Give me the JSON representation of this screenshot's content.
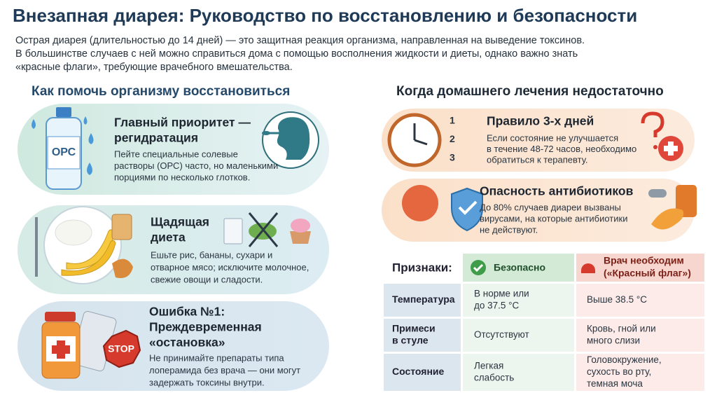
{
  "header": {
    "title": "Внезапная диарея: Руководство по восстановлению и безопасности",
    "intro": [
      "Острая диарея (длительностью до 14 дней) — это защитная реакция организма, направленная на выведение токсинов.",
      "В большинстве случаев с ней можно справиться дома с помощью восполнения жидкости и диеты, однако важно знать",
      "«красные флаги», требующие врачебного вмешательства."
    ]
  },
  "left": {
    "heading": "Как помочь организму восстановиться",
    "cards": [
      {
        "title": [
          "Главный приоритет —",
          "регидратация"
        ],
        "icon_label": "ОРС",
        "text": [
          "Пейте специальные солевые",
          "растворы (ОРС) часто, но маленькими",
          "порциями по несколько глотков."
        ]
      },
      {
        "title": [
          "Щадящая",
          "диета"
        ],
        "text": [
          "Ешьте рис, бананы, сухари и",
          "отварное мясо; исключите молочное,",
          "свежие овощи и сладости."
        ]
      },
      {
        "title": [
          "Ошибка №1:",
          "Преждевременная",
          "«остановка»"
        ],
        "icon_label": "STOP",
        "text": [
          "Не принимайте препараты типа",
          "лоперамида без врача — они могут",
          "задержать токсины внутри."
        ]
      }
    ]
  },
  "right": {
    "heading": "Когда домашнего лечения недостаточно",
    "cards": [
      {
        "title": "Правило 3-х дней",
        "marks": [
          "1",
          "2",
          "3"
        ],
        "text": [
          "Если состояние не улучшается",
          "в течение 48-72 часов, необходимо",
          "обратиться к терапевту."
        ]
      },
      {
        "title": "Опасность антибиотиков",
        "text": [
          "До 80% случаев диареи вызваны",
          "вирусами, на которые антибиотики",
          "не действуют."
        ]
      }
    ]
  },
  "table": {
    "header": [
      "Признаки:",
      [
        "Безопасно"
      ],
      [
        "Врач необходим",
        "(«Красный флаг»)"
      ]
    ],
    "rows": [
      [
        [
          "Температура"
        ],
        [
          "В норме или",
          "до 37.5 °C"
        ],
        [
          "Выше 38.5 °C"
        ]
      ],
      [
        [
          "Примеси",
          "в стуле"
        ],
        [
          "Отсутствуют"
        ],
        [
          "Кровь, гной или",
          "много слизи"
        ]
      ],
      [
        [
          "Состояние"
        ],
        [
          "Легкая",
          "слабость"
        ],
        [
          "Головокружение,",
          "сухость во рту,",
          "темная моча"
        ]
      ]
    ]
  }
}
